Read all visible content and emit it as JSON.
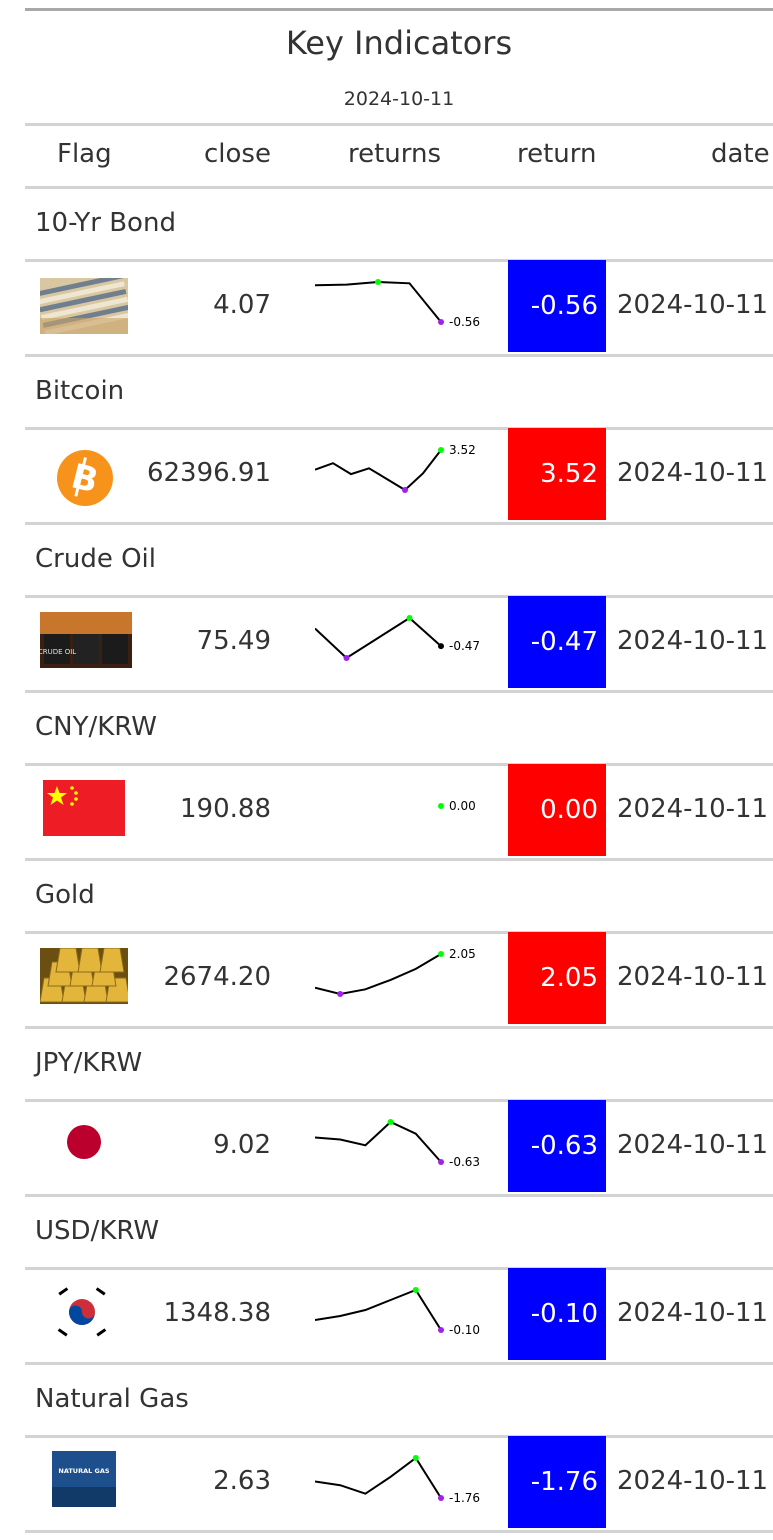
{
  "table": {
    "title": "Key Indicators",
    "subtitle": "2024-10-11",
    "columns": [
      "Flag",
      "close",
      "returns",
      "return",
      "date"
    ]
  },
  "colors": {
    "positive": "#ff0000",
    "negative": "#0000ff",
    "spark_line": "#000000",
    "spark_max": "#00ff00",
    "spark_min": "#a020f0"
  },
  "rows": [
    {
      "group": "10-Yr Bond",
      "icon": "bond-certificates-icon",
      "close": "4.07",
      "spark_label": "-0.56",
      "return": "-0.56",
      "date": "2024-10-11",
      "direction": "negative",
      "spark": [
        0.0,
        0.01,
        0.05,
        0.03,
        -0.56
      ]
    },
    {
      "group": "Bitcoin",
      "icon": "bitcoin-icon",
      "close": "62396.91",
      "spark_label": "3.52",
      "return": "3.52",
      "date": "2024-10-11",
      "direction": "positive",
      "spark": [
        0.8,
        1.7,
        0.2,
        1.0,
        -0.5,
        -2.0,
        0.3,
        3.52
      ]
    },
    {
      "group": "Crude Oil",
      "icon": "crude-oil-barrels-icon",
      "close": "75.49",
      "spark_label": "-0.47",
      "return": "-0.47",
      "date": "2024-10-11",
      "direction": "negative",
      "spark": [
        1.2,
        -1.6,
        0.3,
        2.2,
        -0.47
      ]
    },
    {
      "group": "CNY/KRW",
      "icon": "china-flag-icon",
      "close": "190.88",
      "spark_label": "0.00",
      "return": "0.00",
      "date": "2024-10-11",
      "direction": "positive",
      "spark": [
        0.0
      ]
    },
    {
      "group": "Gold",
      "icon": "gold-bars-icon",
      "close": "2674.20",
      "spark_label": "2.05",
      "return": "2.05",
      "date": "2024-10-11",
      "direction": "positive",
      "spark": [
        -0.1,
        -0.5,
        -0.2,
        0.4,
        1.1,
        2.05
      ]
    },
    {
      "group": "JPY/KRW",
      "icon": "japan-flag-icon",
      "close": "9.02",
      "spark_label": "-0.63",
      "return": "-0.63",
      "date": "2024-10-11",
      "direction": "negative",
      "spark": [
        0.0,
        -0.05,
        -0.2,
        0.4,
        0.1,
        -0.63
      ]
    },
    {
      "group": "USD/KRW",
      "icon": "korea-flag-icon",
      "close": "1348.38",
      "spark_label": "-0.10",
      "return": "-0.10",
      "date": "2024-10-11",
      "direction": "negative",
      "spark": [
        -0.05,
        -0.03,
        0.0,
        0.05,
        0.1,
        -0.1
      ]
    },
    {
      "group": "Natural Gas",
      "icon": "natural-gas-icon",
      "close": "2.63",
      "spark_label": "-1.76",
      "return": "-1.76",
      "date": "2024-10-11",
      "direction": "negative",
      "spark": [
        0.0,
        -0.4,
        -1.3,
        0.5,
        2.5,
        -1.76
      ]
    }
  ],
  "icon_text": {
    "crude_oil": "CRUDE OIL",
    "natural_gas": "NATURAL GAS"
  }
}
